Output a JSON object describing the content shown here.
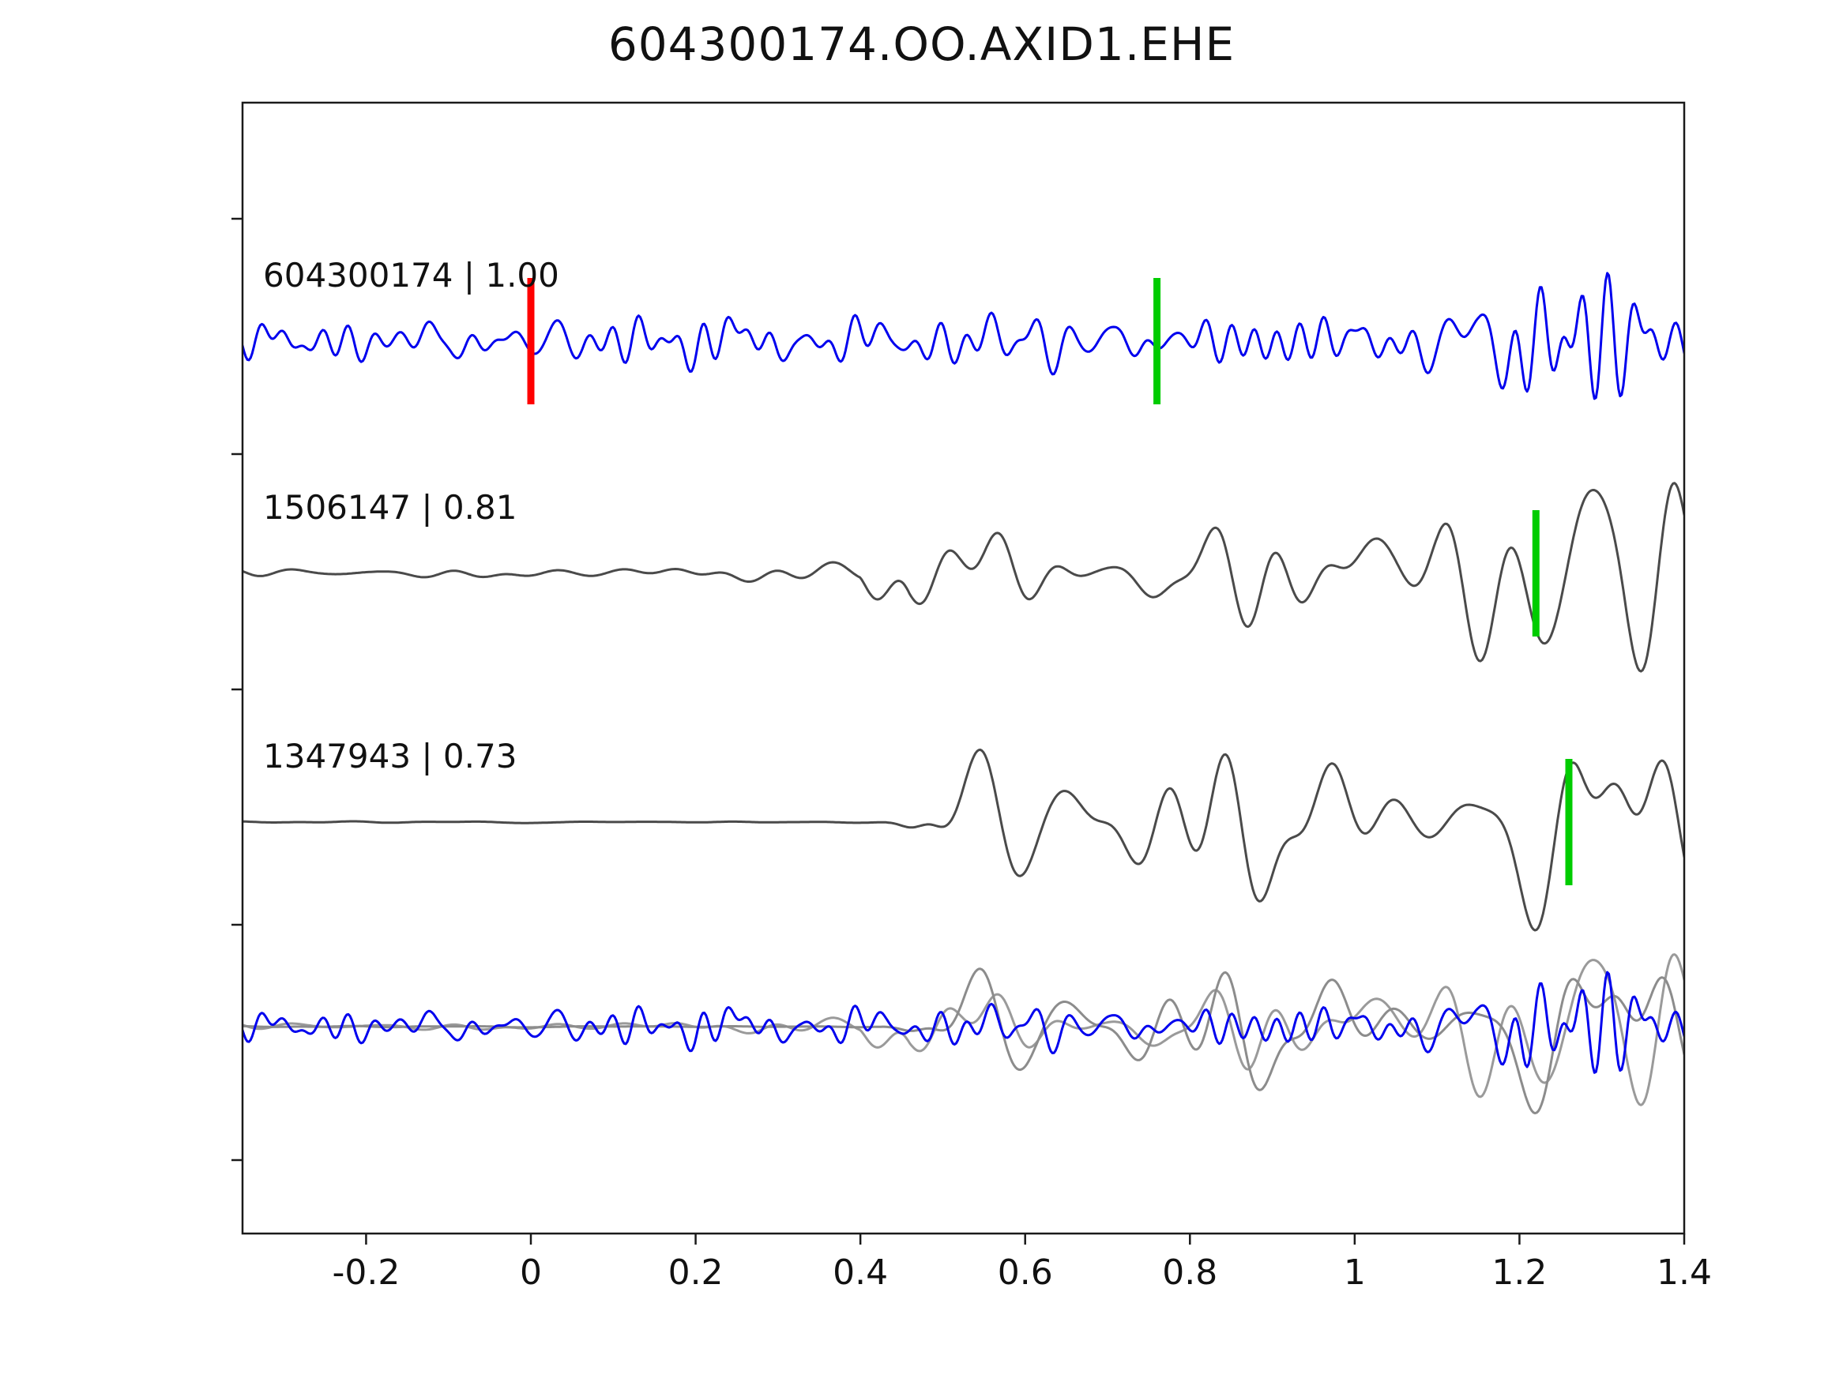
{
  "title": "604300174.OO.AXID1.EHE",
  "chart_data": {
    "type": "line",
    "title": "604300174.OO.AXID1.EHE",
    "xlabel": "",
    "ylabel": "",
    "xlim": [
      -0.35,
      1.4
    ],
    "x_ticks": [
      -0.2,
      0,
      0.2,
      0.4,
      0.6,
      0.8,
      1,
      1.2,
      1.4
    ],
    "x_tick_labels": [
      "-0.2",
      "0",
      "0.2",
      "0.4",
      "0.6",
      "0.8",
      "1",
      "1.2",
      "1.4"
    ],
    "grid": false,
    "legend": null,
    "axis_color": "#1a1a1a",
    "marker_colors": {
      "reference_pick": "#ff0000",
      "aligned_pick": "#00cc00"
    },
    "traces": [
      {
        "id": "604300174",
        "label": "604300174 | 1.00",
        "similarity": 1.0,
        "color": "#0000ee",
        "baseline_y": 432,
        "markers": [
          {
            "x": 0.0,
            "color": "#ff0000",
            "name": "reference-pick"
          },
          {
            "x": 0.76,
            "color": "#00cc00",
            "name": "aligned-pick"
          }
        ],
        "synth": {
          "seed": 11,
          "n": 50,
          "fmin": 8,
          "fmax": 70,
          "base_amp": 14,
          "envelope": [
            [
              -0.35,
              1.0
            ],
            [
              0.4,
              0.95
            ],
            [
              0.7,
              1.15
            ],
            [
              1.0,
              1.05
            ],
            [
              1.15,
              1.3
            ],
            [
              1.22,
              2.6
            ],
            [
              1.3,
              4.5
            ],
            [
              1.36,
              5.2
            ],
            [
              1.4,
              4.2
            ]
          ]
        }
      },
      {
        "id": "1506147",
        "label": "1506147 | 0.81",
        "similarity": 0.81,
        "color": "#4a4a4a",
        "baseline_y": 726,
        "markers": [
          {
            "x": 1.22,
            "color": "#00cc00",
            "name": "aligned-pick"
          }
        ],
        "synth": {
          "seed": 22,
          "n": 36,
          "fmin": 4,
          "fmax": 32,
          "base_amp": 30,
          "envelope": [
            [
              -0.35,
              0.13
            ],
            [
              0.4,
              0.13
            ],
            [
              0.46,
              1.5
            ],
            [
              0.52,
              1.1
            ],
            [
              0.75,
              1.2
            ],
            [
              1.1,
              1.1
            ],
            [
              1.2,
              1.7
            ],
            [
              1.27,
              2.3
            ],
            [
              1.33,
              2.6
            ],
            [
              1.4,
              2.0
            ]
          ]
        }
      },
      {
        "id": "1347943",
        "label": "1347943 | 0.73",
        "similarity": 0.73,
        "color": "#4a4a4a",
        "baseline_y": 1041,
        "markers": [
          {
            "x": 1.26,
            "color": "#00cc00",
            "name": "aligned-pick"
          }
        ],
        "synth": {
          "seed": 37,
          "n": 36,
          "fmin": 4,
          "fmax": 30,
          "base_amp": 30,
          "envelope": [
            [
              -0.35,
              0.02
            ],
            [
              0.43,
              0.02
            ],
            [
              0.48,
              1.2
            ],
            [
              0.8,
              1.15
            ],
            [
              1.05,
              1.05
            ],
            [
              1.18,
              1.2
            ],
            [
              1.27,
              2.2
            ],
            [
              1.33,
              2.5
            ],
            [
              1.4,
              2.0
            ]
          ]
        }
      }
    ],
    "overlay": {
      "baseline_y": 1300,
      "components": [
        {
          "trace_index": 1,
          "color": "#9a9a9a",
          "scale": 0.8
        },
        {
          "trace_index": 2,
          "color": "#8c8c8c",
          "scale": 0.8
        },
        {
          "trace_index": 0,
          "color": "#0000ee",
          "scale": 0.8
        }
      ]
    }
  }
}
